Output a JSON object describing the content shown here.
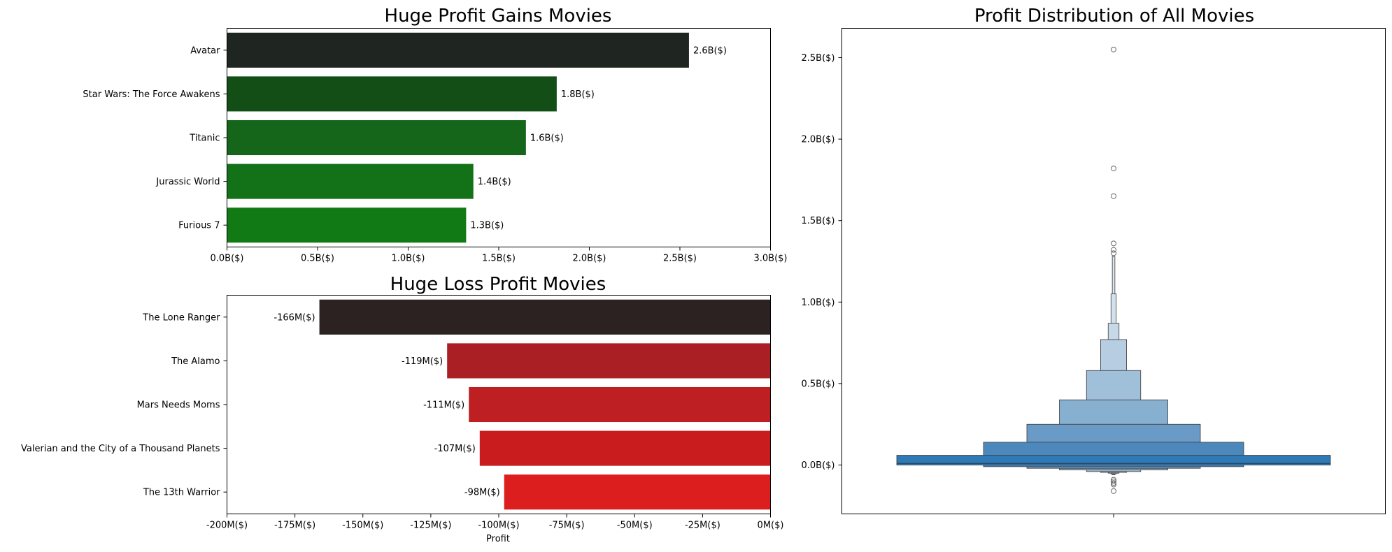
{
  "chart_data": [
    {
      "type": "bar",
      "orientation": "horizontal",
      "title": "Huge Profit Gains Movies",
      "xlabel": "",
      "ylabel": "",
      "categories": [
        "Avatar",
        "Star Wars: The Force Awakens",
        "Titanic",
        "Jurassic World",
        "Furious 7"
      ],
      "values": [
        2.55,
        1.82,
        1.65,
        1.36,
        1.32
      ],
      "unit": "B($)",
      "data_labels": [
        "2.6B($)",
        "1.8B($)",
        "1.6B($)",
        "1.4B($)",
        "1.3B($)"
      ],
      "colors": [
        "#1f2520",
        "#144e17",
        "#15661a",
        "#137217",
        "#127a15"
      ],
      "xlim": [
        0,
        3.0
      ],
      "xticks": [
        0,
        0.5,
        1.0,
        1.5,
        2.0,
        2.5,
        3.0
      ],
      "xtick_labels": [
        "0.0B($)",
        "0.5B($)",
        "1.0B($)",
        "1.5B($)",
        "2.0B($)",
        "2.5B($)",
        "3.0B($)"
      ]
    },
    {
      "type": "bar",
      "orientation": "horizontal",
      "title": "Huge Loss Profit Movies",
      "xlabel": "Profit",
      "ylabel": "",
      "categories": [
        "The Lone Ranger",
        "The Alamo",
        "Mars Needs Moms",
        "Valerian and the City of a Thousand Planets",
        "The 13th Warrior"
      ],
      "values": [
        -166,
        -119,
        -111,
        -107,
        -98
      ],
      "unit": "M($)",
      "data_labels": [
        "-166M($)",
        "-119M($)",
        "-111M($)",
        "-107M($)",
        "-98M($)"
      ],
      "colors": [
        "#2d2222",
        "#a91f24",
        "#bd1f22",
        "#c91c1f",
        "#dc1e1e"
      ],
      "xlim": [
        -200,
        0
      ],
      "xticks": [
        -200,
        -175,
        -150,
        -125,
        -100,
        -75,
        -50,
        -25,
        0
      ],
      "xtick_labels": [
        "-200M($)",
        "-175M($)",
        "-150M($)",
        "-125M($)",
        "-100M($)",
        "-75M($)",
        "-50M($)",
        "-25M($)",
        "0M($)"
      ]
    },
    {
      "type": "boxen",
      "title": "Profit Distribution of All Movies",
      "xlabel": "",
      "ylabel": "",
      "ylim": [
        -0.3,
        2.68
      ],
      "yticks": [
        0.0,
        0.5,
        1.0,
        1.5,
        2.0,
        2.5
      ],
      "ytick_labels": [
        "0.0B($)",
        "0.5B($)",
        "1.0B($)",
        "1.5B($)",
        "2.0B($)",
        "2.5B($)"
      ],
      "median": 0.01,
      "boxes": [
        {
          "low": 0.0,
          "high": 0.06,
          "width": 1.0,
          "color": "#2f79b4"
        },
        {
          "low": -0.01,
          "high": 0.14,
          "width": 0.6,
          "color": "#4d88bd"
        },
        {
          "low": -0.02,
          "high": 0.25,
          "width": 0.4,
          "color": "#6a9bc7"
        },
        {
          "low": -0.03,
          "high": 0.4,
          "width": 0.25,
          "color": "#87afd0"
        },
        {
          "low": -0.04,
          "high": 0.58,
          "width": 0.125,
          "color": "#a0bfd9"
        },
        {
          "low": -0.045,
          "high": 0.77,
          "width": 0.06,
          "color": "#b7cee2"
        },
        {
          "low": -0.05,
          "high": 0.87,
          "width": 0.025,
          "color": "#c7d8e8"
        },
        {
          "low": -0.055,
          "high": 1.05,
          "width": 0.012,
          "color": "#d3e0ed"
        },
        {
          "low": -0.06,
          "high": 1.28,
          "width": 0.006,
          "color": "#dde7f1"
        }
      ],
      "outliers": [
        2.55,
        1.82,
        1.65,
        1.36,
        1.32,
        1.3,
        -0.09,
        -0.1,
        -0.11,
        -0.12,
        -0.16
      ]
    }
  ]
}
